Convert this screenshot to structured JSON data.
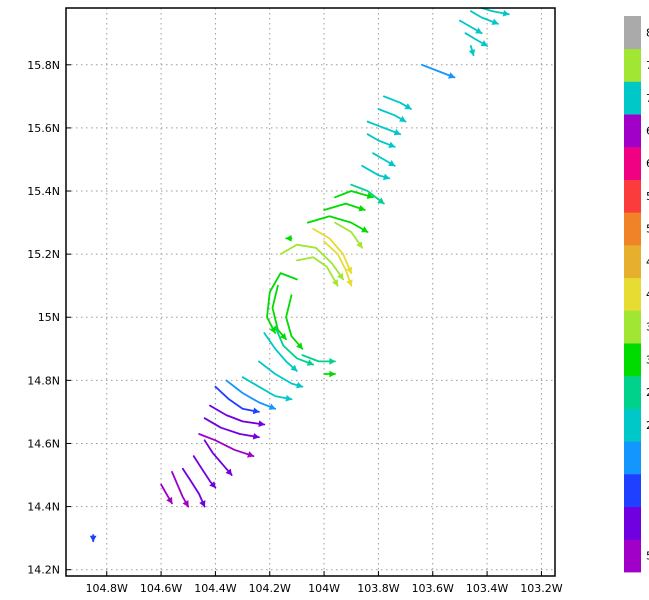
{
  "chart_data": {
    "type": "vector-field",
    "xlim": [
      -104.95,
      -103.15
    ],
    "ylim": [
      14.18,
      15.98
    ],
    "x_ticks": [
      {
        "value": -104.8,
        "label": "104.8W"
      },
      {
        "value": -104.6,
        "label": "104.6W"
      },
      {
        "value": -104.4,
        "label": "104.4W"
      },
      {
        "value": -104.2,
        "label": "104.2W"
      },
      {
        "value": -104.0,
        "label": "104W"
      },
      {
        "value": -103.8,
        "label": "103.8W"
      },
      {
        "value": -103.6,
        "label": "103.6W"
      },
      {
        "value": -103.4,
        "label": "103.4W"
      },
      {
        "value": -103.2,
        "label": "103.2W"
      }
    ],
    "y_ticks": [
      {
        "value": 14.2,
        "label": "14.2N"
      },
      {
        "value": 14.4,
        "label": "14.4N"
      },
      {
        "value": 14.6,
        "label": "14.6N"
      },
      {
        "value": 14.8,
        "label": "14.8N"
      },
      {
        "value": 15.0,
        "label": "15N"
      },
      {
        "value": 15.2,
        "label": "15.2N"
      },
      {
        "value": 15.4,
        "label": "15.4N"
      },
      {
        "value": 15.6,
        "label": "15.6N"
      },
      {
        "value": 15.8,
        "label": "15.8N"
      }
    ],
    "grid": "dotted",
    "colorbar": {
      "position": "right",
      "colors": [
        "#a000c8",
        "#7000e0",
        "#2040ff",
        "#1496ff",
        "#00c8c8",
        "#00d28c",
        "#00dc00",
        "#a0e632",
        "#e6dc32",
        "#e6af2d",
        "#f08228",
        "#fa3c3c",
        "#f00082",
        "#a000c8",
        "#00c8c8",
        "#a0e632",
        "#aaaaaa"
      ],
      "labels": [
        "5",
        "",
        "",
        "",
        "2",
        "2",
        "3",
        "3",
        "4",
        "4",
        "5",
        "5",
        "6",
        "6",
        "7",
        "7",
        "8"
      ]
    },
    "streamlines": [
      {
        "color": "#a000c8",
        "points": [
          [
            -104.6,
            14.47
          ],
          [
            -104.58,
            14.44
          ],
          [
            -104.56,
            14.41
          ]
        ]
      },
      {
        "color": "#a000c8",
        "points": [
          [
            -104.56,
            14.51
          ],
          [
            -104.54,
            14.47
          ],
          [
            -104.52,
            14.43
          ],
          [
            -104.5,
            14.4
          ]
        ]
      },
      {
        "color": "#7000e0",
        "points": [
          [
            -104.52,
            14.52
          ],
          [
            -104.49,
            14.48
          ],
          [
            -104.46,
            14.44
          ],
          [
            -104.44,
            14.4
          ]
        ]
      },
      {
        "color": "#7000e0",
        "points": [
          [
            -104.48,
            14.56
          ],
          [
            -104.45,
            14.52
          ],
          [
            -104.42,
            14.48
          ],
          [
            -104.4,
            14.46
          ]
        ]
      },
      {
        "color": "#7000e0",
        "points": [
          [
            -104.44,
            14.61
          ],
          [
            -104.41,
            14.57
          ],
          [
            -104.37,
            14.53
          ],
          [
            -104.34,
            14.5
          ]
        ]
      },
      {
        "color": "#a000c8",
        "points": [
          [
            -104.46,
            14.63
          ],
          [
            -104.4,
            14.61
          ],
          [
            -104.33,
            14.58
          ],
          [
            -104.26,
            14.56
          ]
        ]
      },
      {
        "color": "#7000e0",
        "points": [
          [
            -104.44,
            14.68
          ],
          [
            -104.38,
            14.65
          ],
          [
            -104.31,
            14.63
          ],
          [
            -104.24,
            14.62
          ]
        ]
      },
      {
        "color": "#7000e0",
        "points": [
          [
            -104.42,
            14.72
          ],
          [
            -104.36,
            14.69
          ],
          [
            -104.3,
            14.67
          ],
          [
            -104.22,
            14.66
          ]
        ]
      },
      {
        "color": "#2040ff",
        "points": [
          [
            -104.4,
            14.78
          ],
          [
            -104.35,
            14.74
          ],
          [
            -104.3,
            14.71
          ],
          [
            -104.24,
            14.7
          ]
        ]
      },
      {
        "color": "#1496ff",
        "points": [
          [
            -104.36,
            14.8
          ],
          [
            -104.3,
            14.76
          ],
          [
            -104.24,
            14.73
          ],
          [
            -104.18,
            14.71
          ]
        ]
      },
      {
        "color": "#00c8c8",
        "points": [
          [
            -104.3,
            14.81
          ],
          [
            -104.24,
            14.78
          ],
          [
            -104.18,
            14.75
          ],
          [
            -104.12,
            14.74
          ]
        ]
      },
      {
        "color": "#00c8c8",
        "points": [
          [
            -104.24,
            14.86
          ],
          [
            -104.18,
            14.82
          ],
          [
            -104.12,
            14.79
          ],
          [
            -104.08,
            14.78
          ]
        ]
      },
      {
        "color": "#00c8c8",
        "points": [
          [
            -104.22,
            14.95
          ],
          [
            -104.18,
            14.9
          ],
          [
            -104.14,
            14.86
          ],
          [
            -104.1,
            14.83
          ]
        ]
      },
      {
        "color": "#00d28c",
        "points": [
          [
            -104.18,
            14.97
          ],
          [
            -104.15,
            14.91
          ],
          [
            -104.1,
            14.87
          ],
          [
            -104.04,
            14.85
          ]
        ]
      },
      {
        "color": "#00dc00",
        "points": [
          [
            -104.12,
            15.07
          ],
          [
            -104.14,
            15.0
          ],
          [
            -104.12,
            14.94
          ],
          [
            -104.08,
            14.9
          ]
        ]
      },
      {
        "color": "#00dc00",
        "points": [
          [
            -104.17,
            15.1
          ],
          [
            -104.19,
            15.03
          ],
          [
            -104.17,
            14.96
          ],
          [
            -104.14,
            14.93
          ]
        ]
      },
      {
        "color": "#00dc00",
        "points": [
          [
            -104.1,
            15.12
          ],
          [
            -104.16,
            15.14
          ],
          [
            -104.2,
            15.08
          ],
          [
            -104.21,
            15.0
          ],
          [
            -104.18,
            14.95
          ]
        ]
      },
      {
        "color": "#00d28c",
        "points": [
          [
            -104.08,
            14.88
          ],
          [
            -104.02,
            14.86
          ],
          [
            -103.96,
            14.86
          ]
        ]
      },
      {
        "color": "#00dc00",
        "points": [
          [
            -104.0,
            14.82
          ],
          [
            -103.96,
            14.82
          ]
        ]
      },
      {
        "color": "#a0e632",
        "points": [
          [
            -104.1,
            15.18
          ],
          [
            -104.04,
            15.19
          ],
          [
            -103.99,
            15.16
          ],
          [
            -103.95,
            15.1
          ]
        ]
      },
      {
        "color": "#a0e632",
        "points": [
          [
            -104.16,
            15.2
          ],
          [
            -104.1,
            15.23
          ],
          [
            -104.03,
            15.22
          ],
          [
            -103.97,
            15.17
          ],
          [
            -103.93,
            15.12
          ]
        ]
      },
      {
        "color": "#e6dc32",
        "points": [
          [
            -104.04,
            15.28
          ],
          [
            -103.98,
            15.25
          ],
          [
            -103.93,
            15.2
          ],
          [
            -103.9,
            15.14
          ]
        ]
      },
      {
        "color": "#e6dc32",
        "points": [
          [
            -104.0,
            15.24
          ],
          [
            -103.95,
            15.2
          ],
          [
            -103.92,
            15.15
          ],
          [
            -103.9,
            15.1
          ]
        ]
      },
      {
        "color": "#a0e632",
        "points": [
          [
            -103.96,
            15.3
          ],
          [
            -103.9,
            15.27
          ],
          [
            -103.86,
            15.22
          ]
        ]
      },
      {
        "color": "#00dc00",
        "points": [
          [
            -104.06,
            15.3
          ],
          [
            -103.98,
            15.32
          ],
          [
            -103.9,
            15.3
          ],
          [
            -103.84,
            15.27
          ]
        ]
      },
      {
        "color": "#00dc00",
        "points": [
          [
            -104.0,
            15.34
          ],
          [
            -103.92,
            15.36
          ],
          [
            -103.85,
            15.34
          ]
        ]
      },
      {
        "color": "#00dc00",
        "points": [
          [
            -103.96,
            15.38
          ],
          [
            -103.9,
            15.4
          ],
          [
            -103.82,
            15.38
          ]
        ]
      },
      {
        "color": "#00dc00",
        "points": [
          [
            -104.12,
            15.25
          ],
          [
            -104.14,
            15.25
          ]
        ]
      },
      {
        "color": "#00d28c",
        "points": [
          [
            -103.9,
            15.42
          ],
          [
            -103.84,
            15.4
          ],
          [
            -103.78,
            15.36
          ]
        ]
      },
      {
        "color": "#00c8c8",
        "points": [
          [
            -103.86,
            15.48
          ],
          [
            -103.8,
            15.45
          ],
          [
            -103.76,
            15.44
          ]
        ]
      },
      {
        "color": "#00c8c8",
        "points": [
          [
            -103.82,
            15.52
          ],
          [
            -103.78,
            15.5
          ],
          [
            -103.74,
            15.48
          ]
        ]
      },
      {
        "color": "#00c8c8",
        "points": [
          [
            -103.84,
            15.58
          ],
          [
            -103.8,
            15.56
          ],
          [
            -103.74,
            15.54
          ]
        ]
      },
      {
        "color": "#00c8c8",
        "points": [
          [
            -103.84,
            15.62
          ],
          [
            -103.78,
            15.6
          ],
          [
            -103.72,
            15.58
          ]
        ]
      },
      {
        "color": "#00c8c8",
        "points": [
          [
            -103.8,
            15.66
          ],
          [
            -103.74,
            15.64
          ],
          [
            -103.7,
            15.62
          ]
        ]
      },
      {
        "color": "#00c8c8",
        "points": [
          [
            -103.78,
            15.7
          ],
          [
            -103.72,
            15.68
          ],
          [
            -103.68,
            15.66
          ]
        ]
      },
      {
        "color": "#1496ff",
        "points": [
          [
            -103.64,
            15.8
          ],
          [
            -103.58,
            15.78
          ],
          [
            -103.52,
            15.76
          ]
        ]
      },
      {
        "color": "#00c8c8",
        "points": [
          [
            -103.48,
            15.9
          ],
          [
            -103.44,
            15.88
          ],
          [
            -103.4,
            15.86
          ]
        ]
      },
      {
        "color": "#00c8c8",
        "points": [
          [
            -103.5,
            15.94
          ],
          [
            -103.46,
            15.92
          ],
          [
            -103.42,
            15.9
          ]
        ]
      },
      {
        "color": "#00c8c8",
        "points": [
          [
            -103.46,
            15.97
          ],
          [
            -103.42,
            15.95
          ],
          [
            -103.36,
            15.93
          ]
        ]
      },
      {
        "color": "#00c8c8",
        "points": [
          [
            -103.42,
            15.98
          ],
          [
            -103.38,
            15.97
          ],
          [
            -103.32,
            15.96
          ]
        ]
      },
      {
        "color": "#00c8c8",
        "points": [
          [
            -103.46,
            15.86
          ],
          [
            -103.45,
            15.83
          ]
        ]
      },
      {
        "color": "#2040ff",
        "points": [
          [
            -104.85,
            14.31
          ],
          [
            -104.85,
            14.29
          ]
        ]
      }
    ]
  }
}
